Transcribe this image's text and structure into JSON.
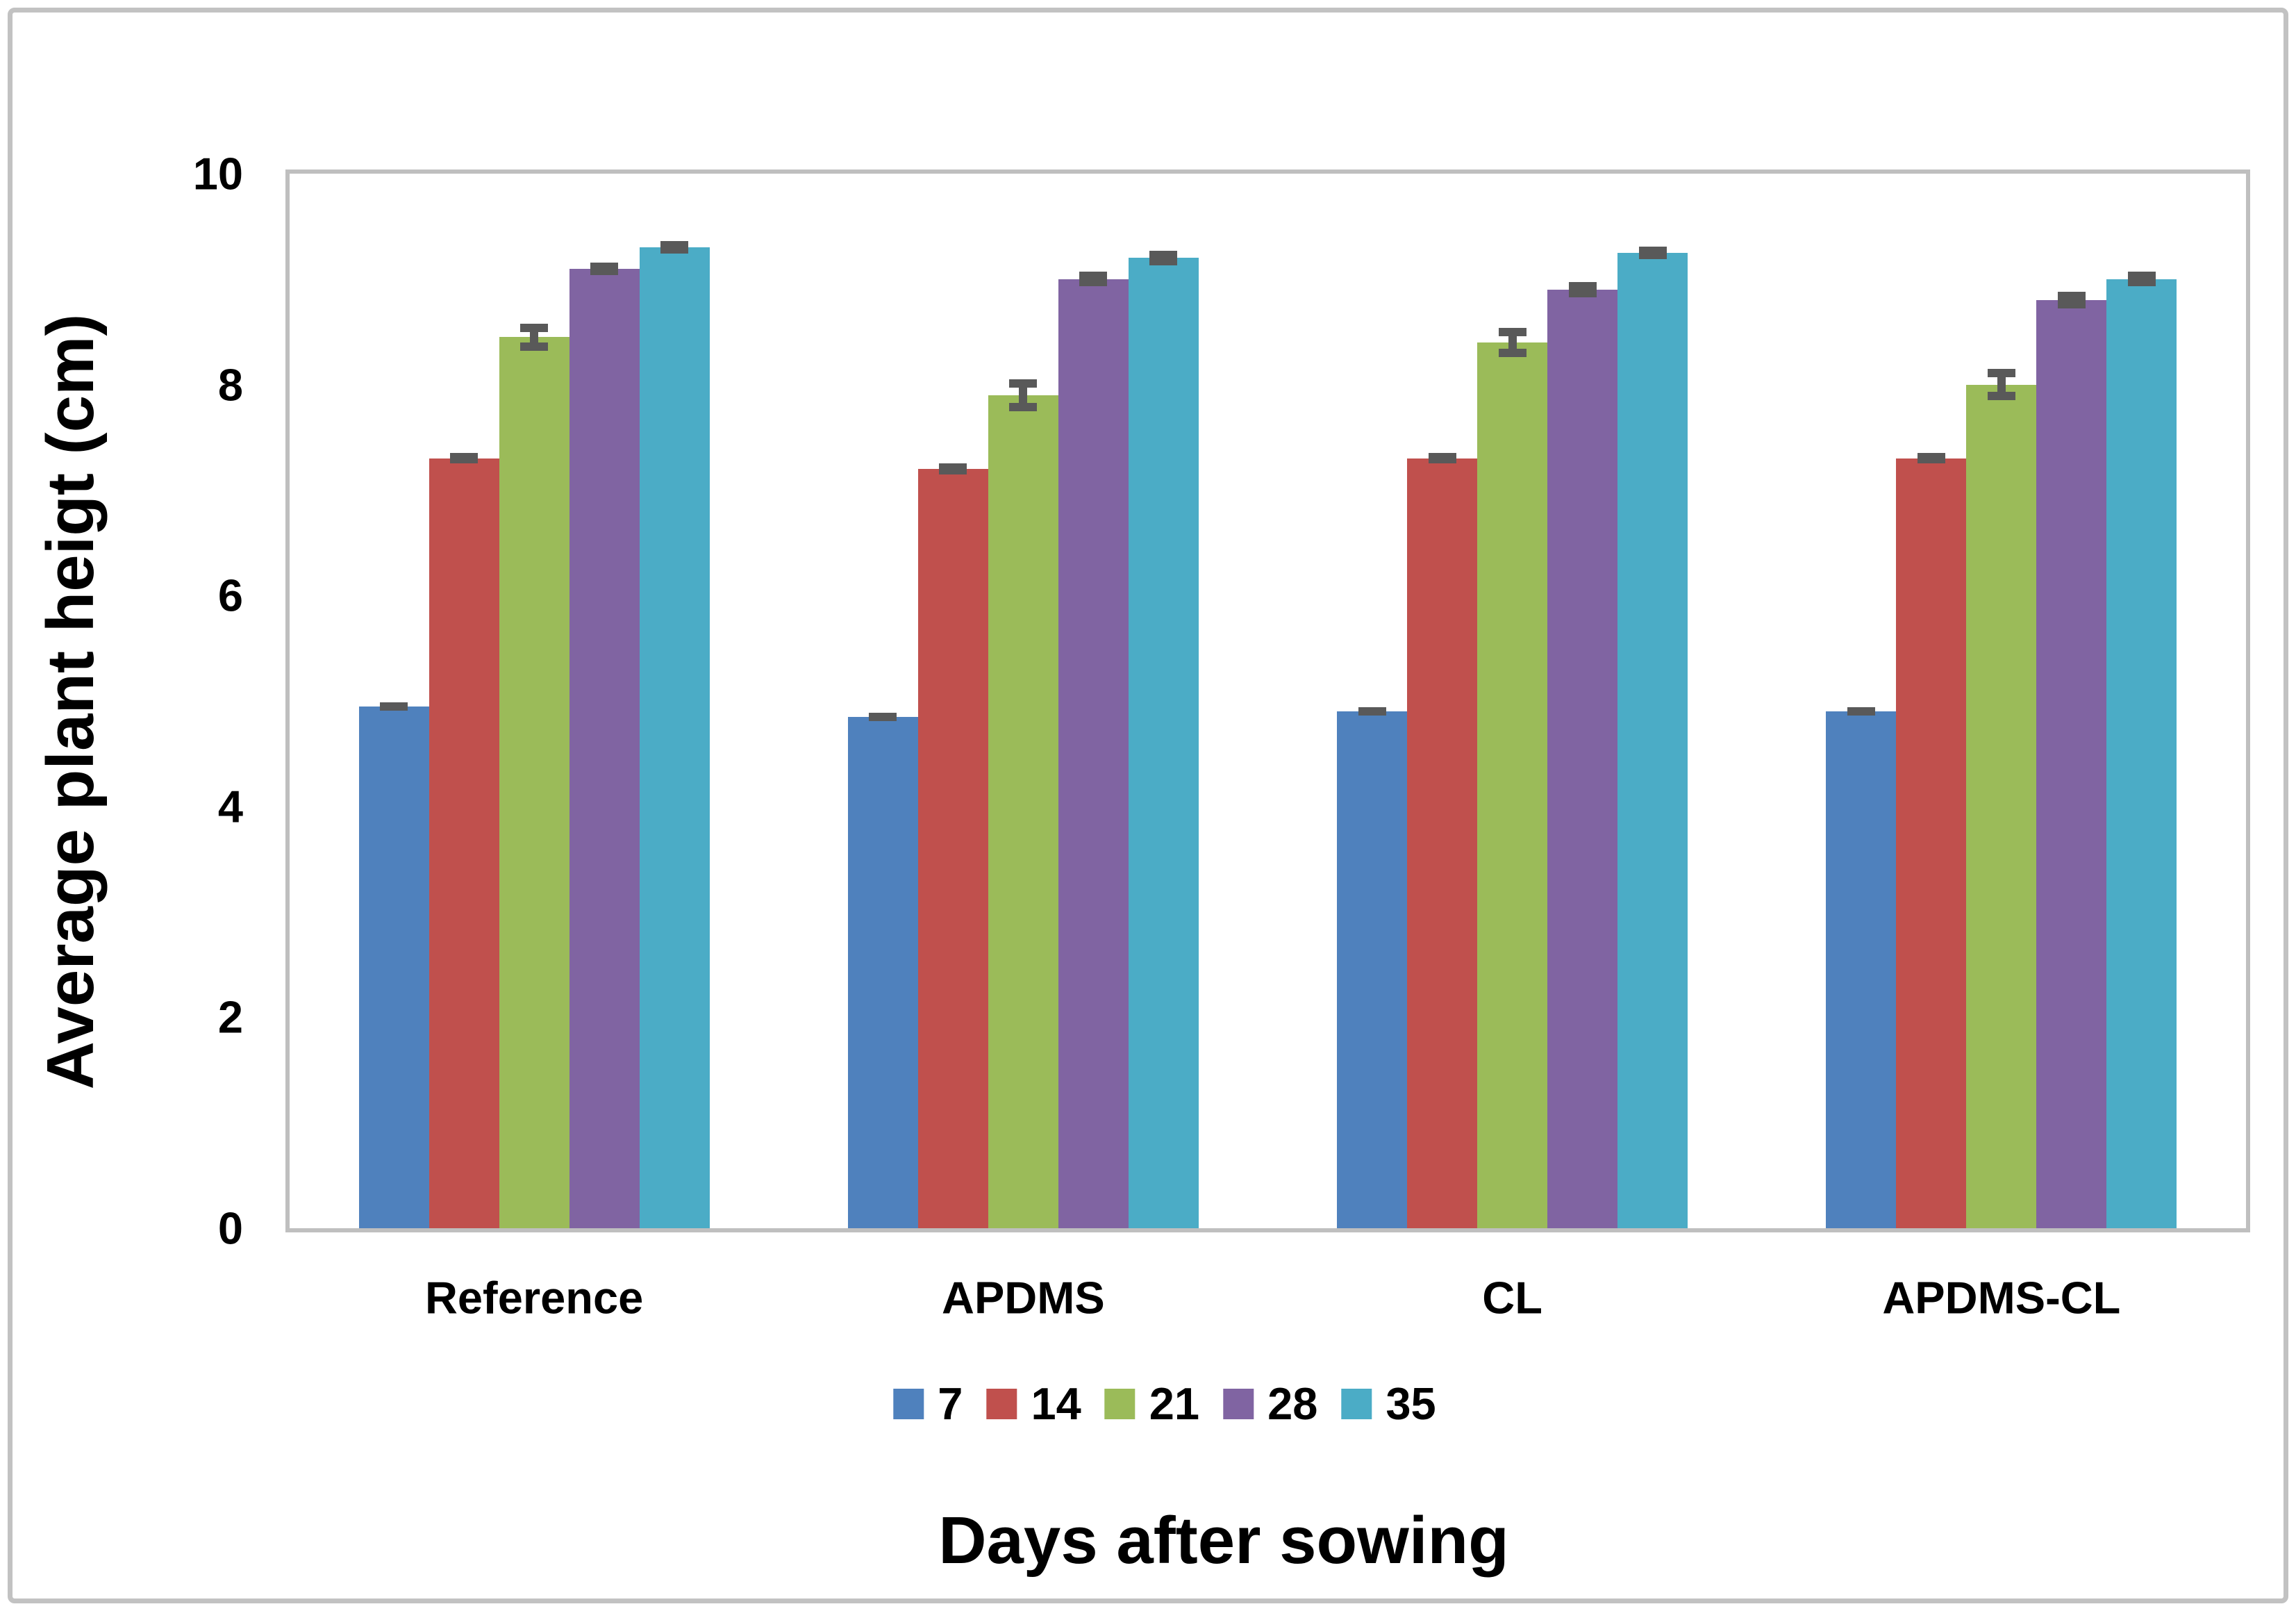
{
  "figure": {
    "y_axis_title": "Average plant heigt (cm)",
    "x_axis_title": "Days after sowing",
    "y_tick_labels": [
      "0",
      "2",
      "4",
      "6",
      "8",
      "10"
    ],
    "category_labels": [
      "Reference",
      "APDMS",
      "CL",
      "APDMS-CL"
    ],
    "legend_labels": [
      "7",
      "14",
      "21",
      "28",
      "35"
    ]
  },
  "chart_data": {
    "type": "bar",
    "title": "",
    "categories": [
      "Reference",
      "APDMS",
      "CL",
      "APDMS-CL"
    ],
    "series": [
      {
        "name": "7",
        "color": "#4F81BD",
        "values": [
          4.95,
          4.85,
          4.9,
          4.9
        ],
        "errors": [
          0.04,
          0.04,
          0.04,
          0.04
        ]
      },
      {
        "name": "14",
        "color": "#C0504D",
        "values": [
          7.3,
          7.2,
          7.3,
          7.3
        ],
        "errors": [
          0.05,
          0.05,
          0.05,
          0.05
        ]
      },
      {
        "name": "21",
        "color": "#9BBB59",
        "values": [
          8.45,
          7.9,
          8.4,
          8.0
        ],
        "errors": [
          0.13,
          0.15,
          0.14,
          0.15
        ]
      },
      {
        "name": "28",
        "color": "#8064A2",
        "values": [
          9.1,
          9.0,
          8.9,
          8.8
        ],
        "errors": [
          0.06,
          0.07,
          0.07,
          0.08
        ]
      },
      {
        "name": "35",
        "color": "#4BACC6",
        "values": [
          9.3,
          9.2,
          9.25,
          9.0
        ],
        "errors": [
          0.06,
          0.07,
          0.06,
          0.07
        ]
      }
    ],
    "xlabel": "Days after sowing",
    "ylabel": "Average plant heigt (cm)",
    "ylim": [
      0,
      10
    ],
    "yticks": [
      0,
      2,
      4,
      6,
      8,
      10
    ],
    "grid": false,
    "legend_position": "bottom",
    "error_bar_color": "#595959",
    "axis_color": "#BFBFBF",
    "outer_border_color": "#C2C2C2"
  }
}
